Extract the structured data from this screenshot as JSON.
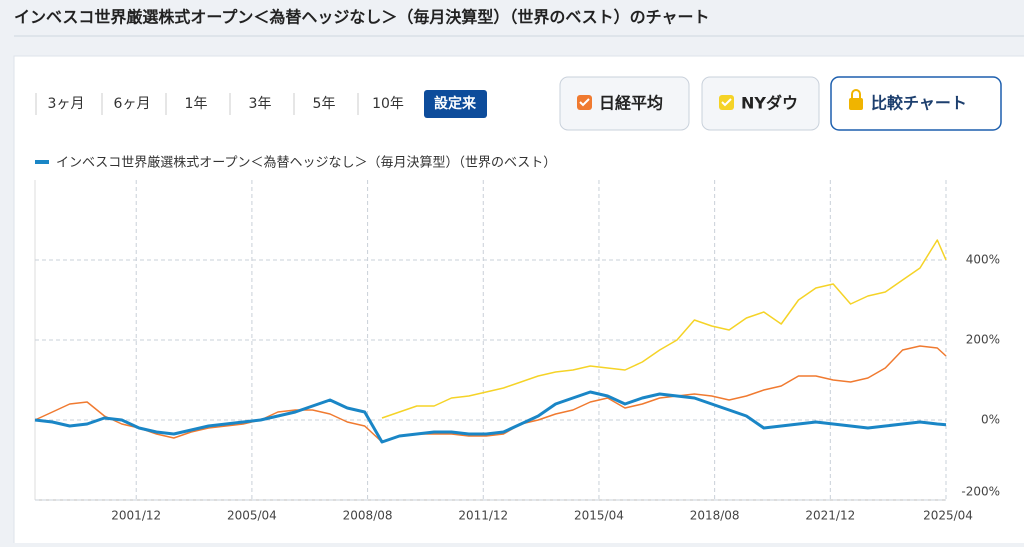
{
  "header": {
    "title": "インベスコ世界厳選株式オープン＜為替ヘッジなし＞（毎月決算型）（世界のベスト）のチャート"
  },
  "periods": [
    "3ヶ月",
    "6ヶ月",
    "1年",
    "3年",
    "5年",
    "10年",
    "設定来"
  ],
  "compare_button": "比較チャート",
  "chart_data": {
    "type": "line",
    "x": [
      "1999/01",
      "1999/07",
      "2000/01",
      "2000/07",
      "2001/01",
      "2001/07",
      "2002/01",
      "2002/07",
      "2003/01",
      "2003/07",
      "2004/01",
      "2004/07",
      "2005/01",
      "2005/07",
      "2006/01",
      "2006/07",
      "2007/01",
      "2007/07",
      "2008/01",
      "2008/07",
      "2009/01",
      "2009/07",
      "2010/01",
      "2010/07",
      "2011/01",
      "2011/07",
      "2012/01",
      "2012/07",
      "2013/01",
      "2013/07",
      "2014/01",
      "2014/07",
      "2015/01",
      "2015/07",
      "2016/01",
      "2016/07",
      "2017/01",
      "2017/07",
      "2018/01",
      "2018/07",
      "2019/01",
      "2019/07",
      "2020/01",
      "2020/07",
      "2021/01",
      "2021/07",
      "2022/01",
      "2022/07",
      "2023/01",
      "2023/07",
      "2024/01",
      "2024/07",
      "2025/01",
      "2025/04"
    ],
    "series": [
      {
        "name": "インベスコ世界厳選株式オープン＜為替ヘッジなし＞（毎月決算型）（世界のベスト）",
        "color": "#1a86c6",
        "values": [
          0,
          -5,
          -15,
          -10,
          5,
          0,
          -20,
          -30,
          -35,
          -25,
          -15,
          -10,
          -5,
          0,
          10,
          20,
          35,
          50,
          30,
          20,
          -55,
          -40,
          -35,
          -30,
          -30,
          -35,
          -35,
          -30,
          -10,
          10,
          40,
          55,
          70,
          60,
          40,
          55,
          65,
          60,
          55,
          40,
          25,
          10,
          -20,
          -15,
          -10,
          -5,
          -10,
          -15,
          -20,
          -15,
          -10,
          -5,
          -10,
          -12
        ]
      },
      {
        "name": "日経平均",
        "color": "#f07a30",
        "values": [
          0,
          20,
          40,
          45,
          10,
          -10,
          -20,
          -35,
          -45,
          -30,
          -20,
          -15,
          -10,
          0,
          20,
          25,
          25,
          15,
          -5,
          -15,
          -55,
          -40,
          -35,
          -35,
          -35,
          -40,
          -40,
          -35,
          -10,
          0,
          15,
          25,
          45,
          55,
          30,
          40,
          55,
          60,
          65,
          60,
          50,
          60,
          75,
          85,
          110,
          110,
          100,
          95,
          105,
          130,
          175,
          185,
          180,
          160
        ]
      },
      {
        "name": "NYダウ",
        "color": "#f5d327",
        "values": [
          null,
          null,
          null,
          null,
          null,
          null,
          null,
          null,
          null,
          null,
          null,
          null,
          null,
          null,
          null,
          null,
          null,
          null,
          null,
          null,
          5,
          20,
          35,
          35,
          55,
          60,
          70,
          80,
          95,
          110,
          120,
          125,
          135,
          130,
          125,
          145,
          175,
          200,
          250,
          235,
          225,
          255,
          270,
          240,
          300,
          330,
          340,
          290,
          310,
          320,
          350,
          380,
          450,
          400
        ]
      }
    ],
    "xlim": [
      "1999/01",
      "2025/04"
    ],
    "xticks": [
      "2001/12",
      "2005/04",
      "2008/08",
      "2011/12",
      "2015/04",
      "2018/08",
      "2021/12",
      "2025/04"
    ],
    "ylim": [
      -200,
      600
    ],
    "yticks": [
      {
        "value": -200,
        "label": "-200%"
      },
      {
        "value": 0,
        "label": "0%"
      },
      {
        "value": 200,
        "label": "200%"
      },
      {
        "value": 400,
        "label": "400%"
      }
    ],
    "grid": true
  }
}
